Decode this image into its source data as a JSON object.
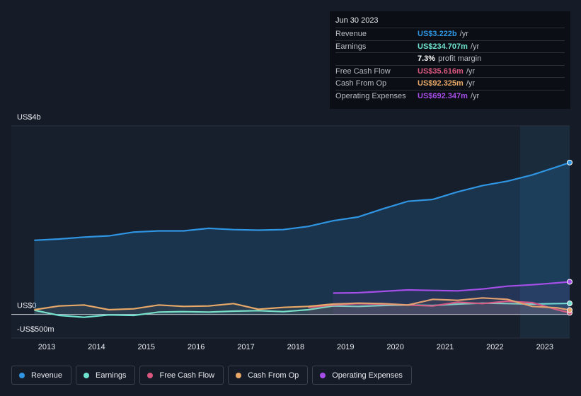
{
  "chart_data": {
    "type": "line",
    "x": [
      2012.75,
      2013.25,
      2013.75,
      2014.25,
      2014.75,
      2015.25,
      2015.75,
      2016.25,
      2016.75,
      2017.25,
      2017.75,
      2018.25,
      2018.75,
      2019.25,
      2019.75,
      2020.25,
      2020.75,
      2021.25,
      2021.75,
      2022.25,
      2022.75,
      2023.25,
      2023.5
    ],
    "xlim": [
      2012.29,
      2023.5
    ],
    "xticks": [
      2013,
      2014,
      2015,
      2016,
      2017,
      2018,
      2019,
      2020,
      2021,
      2022,
      2023
    ],
    "ylim": [
      -500,
      4000
    ],
    "yticks": [
      {
        "value": -500,
        "label": "-US$500m"
      },
      {
        "value": 0,
        "label": "US$0"
      },
      {
        "value": 4000,
        "label": "US$4b"
      }
    ],
    "series": [
      {
        "name": "Revenue",
        "color": "#2f95e2",
        "values": [
          1573,
          1600,
          1640,
          1667,
          1747,
          1773,
          1773,
          1827,
          1800,
          1787,
          1800,
          1867,
          1987,
          2067,
          2240,
          2400,
          2440,
          2600,
          2733,
          2827,
          2960,
          3133,
          3222
        ]
      },
      {
        "name": "Earnings",
        "color": "#6fe3d0",
        "values": [
          90,
          -20,
          -60,
          -10,
          -20,
          50,
          60,
          50,
          70,
          80,
          60,
          100,
          180,
          170,
          190,
          200,
          190,
          220,
          240,
          230,
          220,
          230,
          234.707
        ]
      },
      {
        "name": "Free Cash Flow",
        "color": "#d9577f",
        "values": [
          null,
          null,
          null,
          null,
          null,
          null,
          null,
          null,
          null,
          null,
          null,
          150,
          200,
          230,
          220,
          200,
          180,
          260,
          230,
          280,
          250,
          100,
          35.616
        ]
      },
      {
        "name": "Cash From Op",
        "color": "#e8a868",
        "values": [
          100,
          180,
          200,
          100,
          120,
          200,
          170,
          180,
          230,
          110,
          150,
          170,
          220,
          240,
          230,
          200,
          320,
          300,
          350,
          320,
          170,
          140,
          92.325
        ]
      },
      {
        "name": "Operating Expenses",
        "color": "#a54ee8",
        "values": [
          null,
          null,
          null,
          null,
          null,
          null,
          null,
          null,
          null,
          null,
          null,
          null,
          453,
          460,
          490,
          520,
          510,
          500,
          540,
          600,
          630,
          670,
          692.347
        ]
      }
    ]
  },
  "tooltip": {
    "date": "Jun 30 2023",
    "rows": [
      {
        "label": "Revenue",
        "value": "US$3.222b",
        "suffix": "/yr"
      },
      {
        "label": "Earnings",
        "value": "US$234.707m",
        "suffix": "/yr"
      },
      {
        "value": "7.3%",
        "suffix": "profit margin"
      },
      {
        "label": "Free Cash Flow",
        "value": "US$35.616m",
        "suffix": "/yr"
      },
      {
        "label": "Cash From Op",
        "value": "US$92.325m",
        "suffix": "/yr"
      },
      {
        "label": "Operating Expenses",
        "value": "US$692.347m",
        "suffix": "/yr"
      }
    ]
  }
}
